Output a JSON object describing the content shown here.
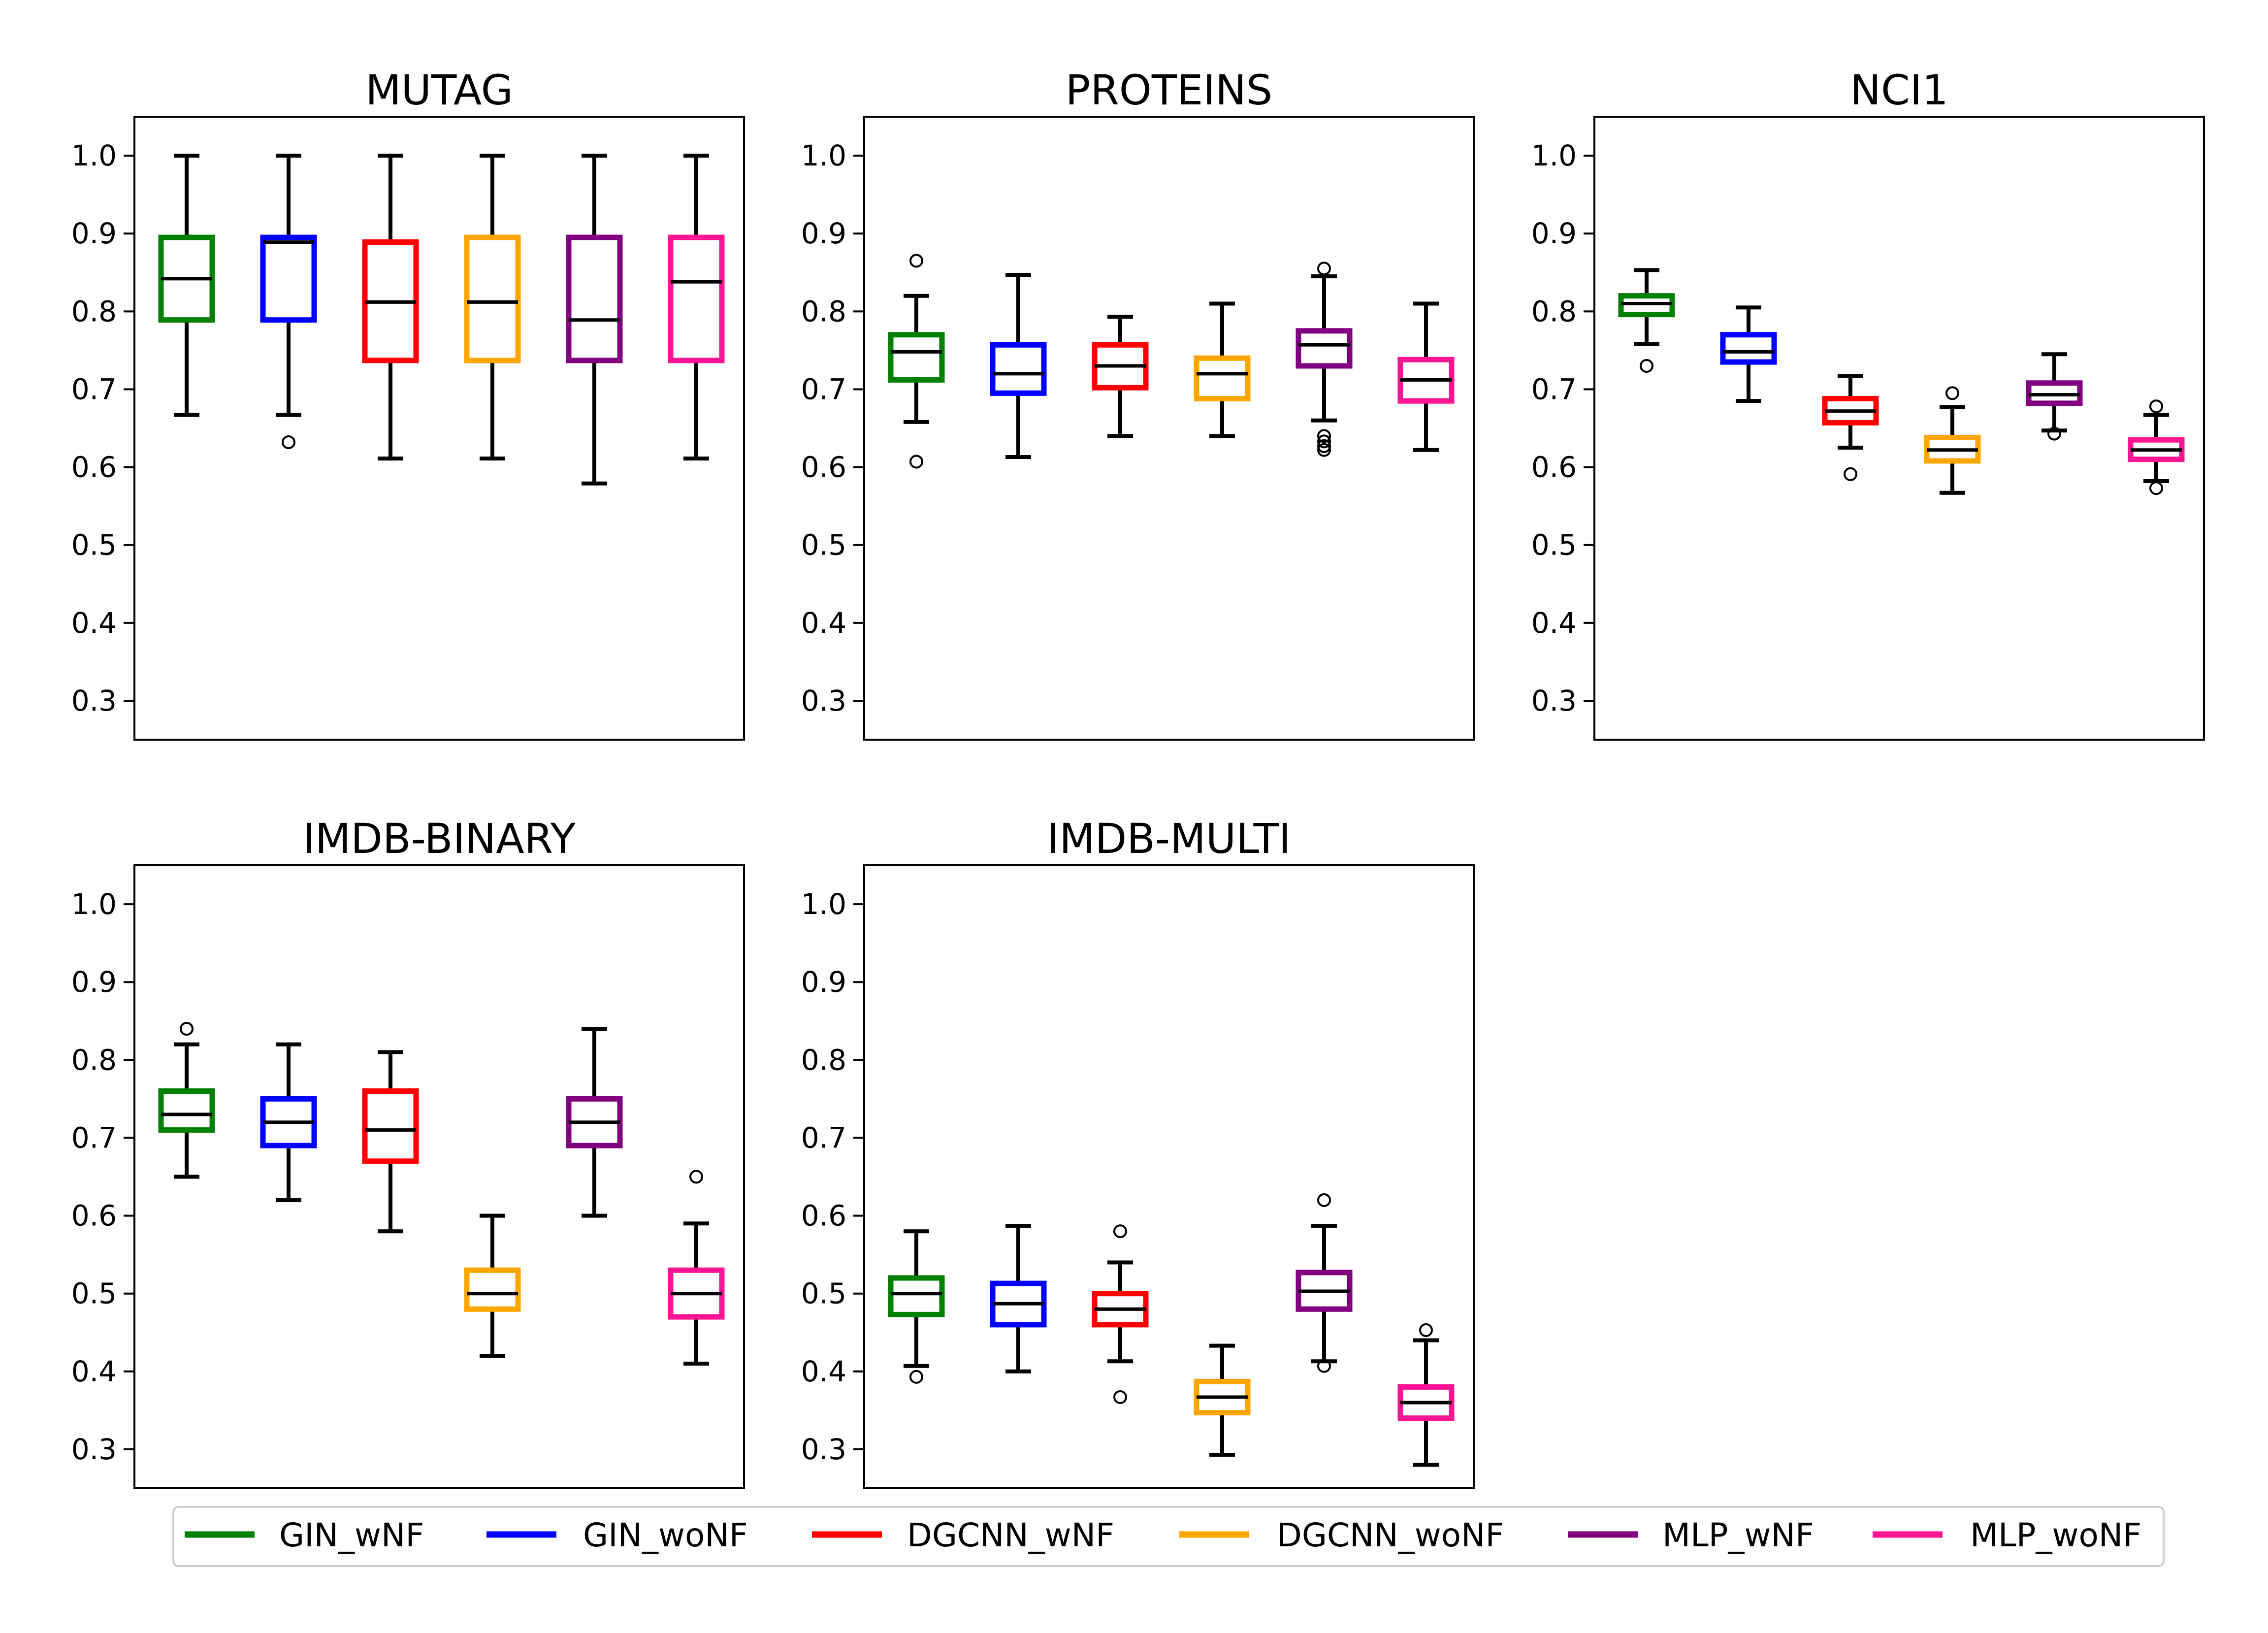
{
  "colors": {
    "GIN_wNF": "#008000",
    "GIN_woNF": "#0000ff",
    "DGCNN_wNF": "#ff0000",
    "DGCNN_woNF": "#ffa500",
    "MLP_wNF": "#800080",
    "MLP_woNF": "#ff1493"
  },
  "legend": {
    "items": [
      "GIN_wNF",
      "GIN_woNF",
      "DGCNN_wNF",
      "DGCNN_woNF",
      "MLP_wNF",
      "MLP_woNF"
    ]
  },
  "chart_data": [
    {
      "type": "box",
      "title": "MUTAG",
      "ylim": [
        0.25,
        1.05
      ],
      "yticks": [
        "0.3",
        "0.4",
        "0.5",
        "0.6",
        "0.7",
        "0.8",
        "0.9",
        "1.0"
      ],
      "series": [
        {
          "name": "GIN_wNF",
          "whislo": 0.667,
          "q1": 0.789,
          "med": 0.842,
          "q3": 0.895,
          "whishi": 1.0,
          "fliers": []
        },
        {
          "name": "GIN_woNF",
          "whislo": 0.667,
          "q1": 0.789,
          "med": 0.889,
          "q3": 0.895,
          "whishi": 1.0,
          "fliers": [
            0.632
          ]
        },
        {
          "name": "DGCNN_wNF",
          "whislo": 0.611,
          "q1": 0.737,
          "med": 0.812,
          "q3": 0.889,
          "whishi": 1.0,
          "fliers": []
        },
        {
          "name": "DGCNN_woNF",
          "whislo": 0.611,
          "q1": 0.737,
          "med": 0.812,
          "q3": 0.895,
          "whishi": 1.0,
          "fliers": []
        },
        {
          "name": "MLP_wNF",
          "whislo": 0.579,
          "q1": 0.737,
          "med": 0.789,
          "q3": 0.895,
          "whishi": 1.0,
          "fliers": []
        },
        {
          "name": "MLP_woNF",
          "whislo": 0.611,
          "q1": 0.737,
          "med": 0.838,
          "q3": 0.895,
          "whishi": 1.0,
          "fliers": []
        }
      ]
    },
    {
      "type": "box",
      "title": "PROTEINS",
      "ylim": [
        0.25,
        1.05
      ],
      "yticks": [
        "0.3",
        "0.4",
        "0.5",
        "0.6",
        "0.7",
        "0.8",
        "0.9",
        "1.0"
      ],
      "series": [
        {
          "name": "GIN_wNF",
          "whislo": 0.658,
          "q1": 0.712,
          "med": 0.748,
          "q3": 0.77,
          "whishi": 0.82,
          "fliers": [
            0.865,
            0.607
          ]
        },
        {
          "name": "GIN_woNF",
          "whislo": 0.613,
          "q1": 0.695,
          "med": 0.72,
          "q3": 0.757,
          "whishi": 0.847,
          "fliers": []
        },
        {
          "name": "DGCNN_wNF",
          "whislo": 0.64,
          "q1": 0.702,
          "med": 0.73,
          "q3": 0.757,
          "whishi": 0.793,
          "fliers": []
        },
        {
          "name": "DGCNN_woNF",
          "whislo": 0.64,
          "q1": 0.688,
          "med": 0.72,
          "q3": 0.74,
          "whishi": 0.81,
          "fliers": []
        },
        {
          "name": "MLP_wNF",
          "whislo": 0.66,
          "q1": 0.73,
          "med": 0.757,
          "q3": 0.775,
          "whishi": 0.845,
          "fliers": [
            0.855,
            0.64,
            0.633,
            0.627,
            0.622
          ]
        },
        {
          "name": "MLP_woNF",
          "whislo": 0.622,
          "q1": 0.685,
          "med": 0.712,
          "q3": 0.738,
          "whishi": 0.81,
          "fliers": []
        }
      ]
    },
    {
      "type": "box",
      "title": "NCI1",
      "ylim": [
        0.25,
        1.05
      ],
      "yticks": [
        "0.3",
        "0.4",
        "0.5",
        "0.6",
        "0.7",
        "0.8",
        "0.9",
        "1.0"
      ],
      "series": [
        {
          "name": "GIN_wNF",
          "whislo": 0.758,
          "q1": 0.796,
          "med": 0.81,
          "q3": 0.82,
          "whishi": 0.853,
          "fliers": [
            0.73
          ]
        },
        {
          "name": "GIN_woNF",
          "whislo": 0.685,
          "q1": 0.735,
          "med": 0.748,
          "q3": 0.77,
          "whishi": 0.805,
          "fliers": []
        },
        {
          "name": "DGCNN_wNF",
          "whislo": 0.625,
          "q1": 0.657,
          "med": 0.672,
          "q3": 0.688,
          "whishi": 0.717,
          "fliers": [
            0.591
          ]
        },
        {
          "name": "DGCNN_woNF",
          "whislo": 0.567,
          "q1": 0.608,
          "med": 0.622,
          "q3": 0.638,
          "whishi": 0.677,
          "fliers": [
            0.695
          ]
        },
        {
          "name": "MLP_wNF",
          "whislo": 0.647,
          "q1": 0.682,
          "med": 0.693,
          "q3": 0.708,
          "whishi": 0.745,
          "fliers": [
            0.643
          ]
        },
        {
          "name": "MLP_woNF",
          "whislo": 0.582,
          "q1": 0.61,
          "med": 0.622,
          "q3": 0.635,
          "whishi": 0.667,
          "fliers": [
            0.678,
            0.573
          ]
        }
      ]
    },
    {
      "type": "box",
      "title": "IMDB-BINARY",
      "ylim": [
        0.25,
        1.05
      ],
      "yticks": [
        "0.3",
        "0.4",
        "0.5",
        "0.6",
        "0.7",
        "0.8",
        "0.9",
        "1.0"
      ],
      "series": [
        {
          "name": "GIN_wNF",
          "whislo": 0.65,
          "q1": 0.71,
          "med": 0.73,
          "q3": 0.76,
          "whishi": 0.82,
          "fliers": [
            0.84
          ]
        },
        {
          "name": "GIN_woNF",
          "whislo": 0.62,
          "q1": 0.69,
          "med": 0.72,
          "q3": 0.75,
          "whishi": 0.82,
          "fliers": []
        },
        {
          "name": "DGCNN_wNF",
          "whislo": 0.58,
          "q1": 0.67,
          "med": 0.71,
          "q3": 0.76,
          "whishi": 0.81,
          "fliers": []
        },
        {
          "name": "DGCNN_woNF",
          "whislo": 0.42,
          "q1": 0.48,
          "med": 0.5,
          "q3": 0.53,
          "whishi": 0.6,
          "fliers": []
        },
        {
          "name": "MLP_wNF",
          "whislo": 0.6,
          "q1": 0.69,
          "med": 0.72,
          "q3": 0.75,
          "whishi": 0.84,
          "fliers": []
        },
        {
          "name": "MLP_woNF",
          "whislo": 0.41,
          "q1": 0.47,
          "med": 0.5,
          "q3": 0.53,
          "whishi": 0.59,
          "fliers": [
            0.65
          ]
        }
      ]
    },
    {
      "type": "box",
      "title": "IMDB-MULTI",
      "ylim": [
        0.25,
        1.05
      ],
      "yticks": [
        "0.3",
        "0.4",
        "0.5",
        "0.6",
        "0.7",
        "0.8",
        "0.9",
        "1.0"
      ],
      "series": [
        {
          "name": "GIN_wNF",
          "whislo": 0.407,
          "q1": 0.473,
          "med": 0.5,
          "q3": 0.52,
          "whishi": 0.58,
          "fliers": [
            0.393
          ]
        },
        {
          "name": "GIN_woNF",
          "whislo": 0.4,
          "q1": 0.46,
          "med": 0.487,
          "q3": 0.513,
          "whishi": 0.587,
          "fliers": []
        },
        {
          "name": "DGCNN_wNF",
          "whislo": 0.413,
          "q1": 0.46,
          "med": 0.48,
          "q3": 0.5,
          "whishi": 0.54,
          "fliers": [
            0.58,
            0.367
          ]
        },
        {
          "name": "DGCNN_woNF",
          "whislo": 0.293,
          "q1": 0.347,
          "med": 0.367,
          "q3": 0.387,
          "whishi": 0.433,
          "fliers": []
        },
        {
          "name": "MLP_wNF",
          "whislo": 0.413,
          "q1": 0.48,
          "med": 0.503,
          "q3": 0.527,
          "whishi": 0.587,
          "fliers": [
            0.62,
            0.407
          ]
        },
        {
          "name": "MLP_woNF",
          "whislo": 0.28,
          "q1": 0.34,
          "med": 0.36,
          "q3": 0.38,
          "whishi": 0.44,
          "fliers": [
            0.453
          ]
        }
      ]
    }
  ]
}
